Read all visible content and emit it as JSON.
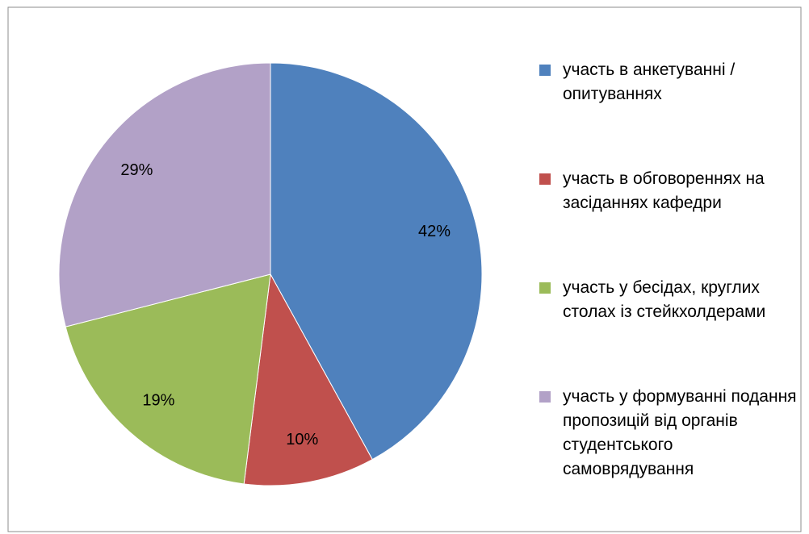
{
  "chart_data": {
    "type": "pie",
    "categories": [
      "участь в анкетуванні / опитуваннях",
      "участь в обговореннях на засіданнях кафедри",
      "участь у бесідах, круглих столах із стейкхолдерами",
      "участь у формуванні подання пропозицій від органів студентського самоврядування"
    ],
    "values": [
      42,
      10,
      19,
      29
    ],
    "value_labels": [
      "42%",
      "10%",
      "19%",
      "29%"
    ],
    "colors": [
      "#4f81bd",
      "#c0504d",
      "#9bbb59",
      "#b2a1c7"
    ],
    "legend": "right"
  }
}
